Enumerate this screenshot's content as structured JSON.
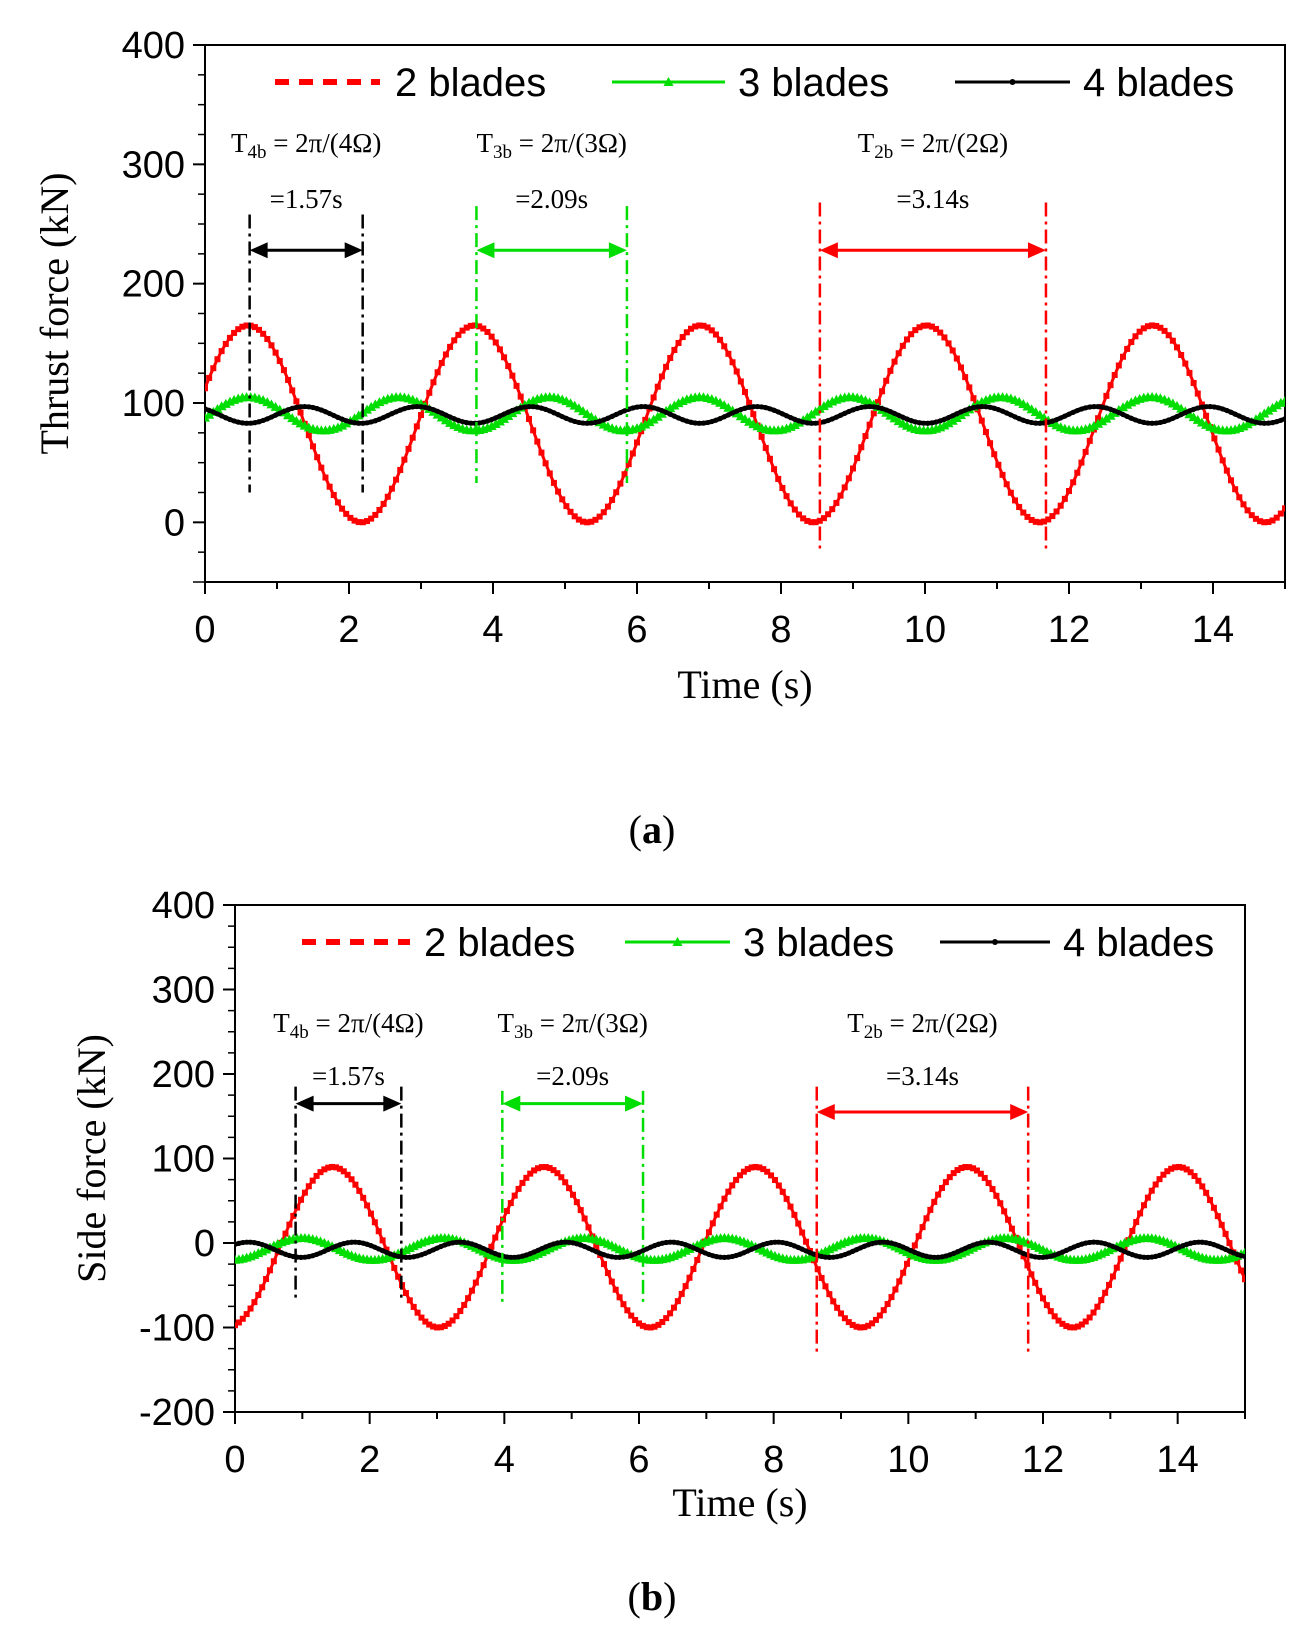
{
  "chart_data": [
    {
      "type": "line",
      "panel_label": "a",
      "ylabel": "Thrust force (kN)",
      "xlabel": "Time (s)",
      "xlim": [
        0,
        15
      ],
      "ylim": [
        -50,
        400
      ],
      "x_ticks": [
        0,
        2,
        4,
        6,
        8,
        10,
        12,
        14
      ],
      "y_ticks": [
        0,
        100,
        200,
        300,
        400
      ],
      "legend": [
        "2 blades",
        "3 blades",
        "4 blades"
      ],
      "legend_position": "top",
      "series": [
        {
          "name": "2 blades",
          "color": "#ff0000",
          "style": "dashed-square-markers",
          "mean": 82.5,
          "amplitude": 82.5,
          "period": 3.14,
          "phase_peak_t": 0.6
        },
        {
          "name": "3 blades",
          "color": "#00dd00",
          "style": "triangle-markers",
          "mean": 91,
          "amplitude": 14,
          "period": 2.09,
          "phase_peak_t": 0.6
        },
        {
          "name": "4 blades",
          "color": "#000000",
          "style": "line",
          "mean": 90,
          "amplitude": 7,
          "period": 1.57,
          "phase_peak_t": 1.38
        }
      ],
      "annotations": [
        {
          "id": "4b",
          "color": "#000000",
          "top_label": "T",
          "top_sub": "4b",
          "top_rest": " = 2π/(4Ω)",
          "value_label": "=1.57s",
          "x_start": 0.62,
          "x_end": 2.19,
          "y_arrow": 228,
          "y_low": 25,
          "y_high": 258
        },
        {
          "id": "3b",
          "color": "#00dd00",
          "top_label": "T",
          "top_sub": "3b",
          "top_rest": " = 2π/(3Ω)",
          "value_label": "=2.09s",
          "x_start": 3.77,
          "x_end": 5.86,
          "y_arrow": 228,
          "y_low": 33,
          "y_high": 265
        },
        {
          "id": "2b",
          "color": "#ff0000",
          "top_label": "T",
          "top_sub": "2b",
          "top_rest": " = 2π/(2Ω)",
          "value_label": "=3.14s",
          "x_start": 8.54,
          "x_end": 11.68,
          "y_arrow": 228,
          "y_low": -25,
          "y_high": 268
        }
      ]
    },
    {
      "type": "line",
      "panel_label": "b",
      "ylabel": "Side force (kN)",
      "xlabel": "Time (s)",
      "xlim": [
        0,
        15
      ],
      "ylim": [
        -200,
        400
      ],
      "x_ticks": [
        0,
        2,
        4,
        6,
        8,
        10,
        12,
        14
      ],
      "y_ticks": [
        -200,
        -100,
        0,
        100,
        200,
        300,
        400
      ],
      "legend": [
        "2 blades",
        "3 blades",
        "4 blades"
      ],
      "legend_position": "top",
      "series": [
        {
          "name": "2 blades",
          "color": "#ff0000",
          "style": "dashed-square-markers",
          "mean": -5,
          "amplitude": 95,
          "period": 3.14,
          "phase_peak_t": 1.45
        },
        {
          "name": "3 blades",
          "color": "#00dd00",
          "style": "triangle-markers",
          "mean": -7,
          "amplitude": 13,
          "period": 2.09,
          "phase_peak_t": 1.0
        },
        {
          "name": "4 blades",
          "color": "#000000",
          "style": "line",
          "mean": -8,
          "amplitude": 9,
          "period": 1.57,
          "phase_peak_t": 0.2
        }
      ],
      "annotations": [
        {
          "id": "4b",
          "color": "#000000",
          "top_label": "T",
          "top_sub": "4b",
          "top_rest": " = 2π/(4Ω)",
          "value_label": "=1.57s",
          "x_start": 0.9,
          "x_end": 2.47,
          "y_arrow": 165,
          "y_low": -70,
          "y_high": 185
        },
        {
          "id": "3b",
          "color": "#00dd00",
          "top_label": "T",
          "top_sub": "3b",
          "top_rest": " = 2π/(3Ω)",
          "value_label": "=2.09s",
          "x_start": 3.97,
          "x_end": 6.06,
          "y_arrow": 165,
          "y_low": -70,
          "y_high": 180
        },
        {
          "id": "2b",
          "color": "#ff0000",
          "top_label": "T",
          "top_sub": "2b",
          "top_rest": " = 2π/(2Ω)",
          "value_label": "=3.14s",
          "x_start": 8.64,
          "x_end": 11.78,
          "y_arrow": 155,
          "y_low": -130,
          "y_high": 185
        }
      ]
    }
  ],
  "captions": {
    "a": {
      "open": "(",
      "letter": "a",
      "close": ")"
    },
    "b": {
      "open": "(",
      "letter": "b",
      "close": ")"
    }
  }
}
